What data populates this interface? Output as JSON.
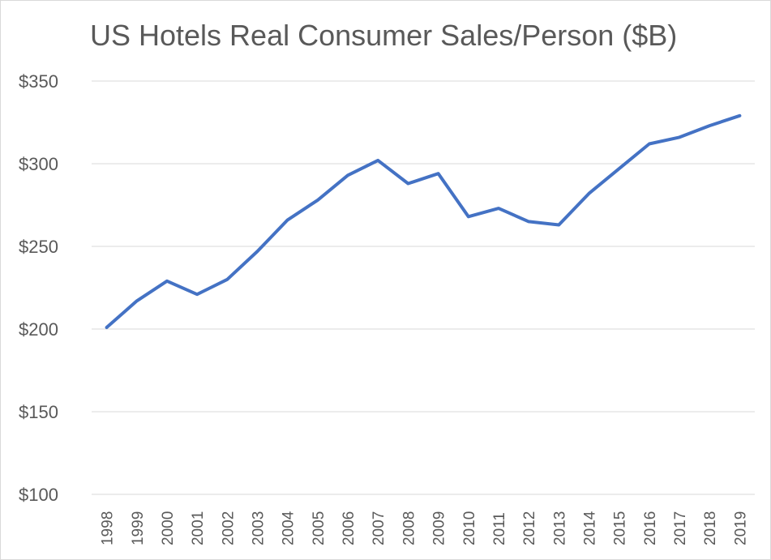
{
  "chart_data": {
    "type": "line",
    "title": "US Hotels Real Consumer Sales/Person ($B)",
    "xlabel": "",
    "ylabel": "",
    "categories": [
      "1998",
      "1999",
      "2000",
      "2001",
      "2002",
      "2003",
      "2004",
      "2005",
      "2006",
      "2007",
      "2008",
      "2009",
      "2010",
      "2011",
      "2012",
      "2013",
      "2014",
      "2015",
      "2016",
      "2017",
      "2018",
      "2019"
    ],
    "series": [
      {
        "values": [
          201,
          217,
          229,
          221,
          230,
          247,
          266,
          278,
          293,
          302,
          288,
          294,
          268,
          273,
          265,
          263,
          282,
          297,
          312,
          316,
          323,
          329
        ]
      }
    ],
    "ylim": [
      100,
      350
    ],
    "yticks": [
      100,
      150,
      200,
      250,
      300,
      350
    ],
    "ytick_labels": [
      "$100",
      "$150",
      "$200",
      "$250",
      "$300",
      "$350"
    ],
    "grid": true,
    "legend": "none",
    "colors": {
      "line": "#4472c4",
      "grid": "#d9d9d9",
      "text": "#595959"
    }
  }
}
